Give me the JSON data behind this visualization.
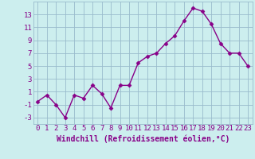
{
  "x": [
    0,
    1,
    2,
    3,
    4,
    5,
    6,
    7,
    8,
    9,
    10,
    11,
    12,
    13,
    14,
    15,
    16,
    17,
    18,
    19,
    20,
    21,
    22,
    23
  ],
  "y": [
    -0.5,
    0.5,
    -1.0,
    -3.0,
    0.5,
    0.0,
    2.0,
    0.7,
    -1.5,
    2.0,
    2.0,
    5.5,
    6.5,
    7.0,
    8.5,
    9.7,
    12.0,
    14.0,
    13.5,
    11.5,
    8.5,
    7.0,
    7.0,
    5.0
  ],
  "line_color": "#880088",
  "marker": "D",
  "markersize": 2.5,
  "linewidth": 1.0,
  "bg_color": "#cceeee",
  "grid_color": "#99bbcc",
  "xlabel": "Windchill (Refroidissement éolien,°C)",
  "xlabel_color": "#880088",
  "xlabel_fontsize": 7,
  "tick_color": "#880088",
  "tick_fontsize": 6.5,
  "xlim": [
    -0.5,
    23.5
  ],
  "ylim": [
    -4,
    15
  ],
  "yticks": [
    -3,
    -1,
    1,
    3,
    5,
    7,
    9,
    11,
    13
  ],
  "xticks": [
    0,
    1,
    2,
    3,
    4,
    5,
    6,
    7,
    8,
    9,
    10,
    11,
    12,
    13,
    14,
    15,
    16,
    17,
    18,
    19,
    20,
    21,
    22,
    23
  ]
}
